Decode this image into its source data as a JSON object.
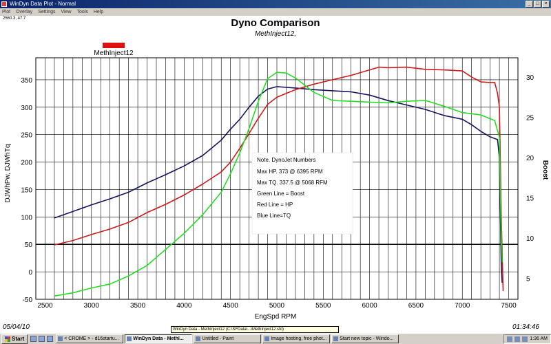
{
  "window": {
    "title": "WinDyn Data Plot - Normal"
  },
  "menu": [
    "Plot",
    "Overlay",
    "Settings",
    "View",
    "Tools",
    "Help"
  ],
  "coord_readout": "2560.3, 47.7",
  "status": {
    "date": "05/04/10",
    "time": "01:34:46",
    "file_info": "WinDyn Data - MethInject12  (C:\\SFData\\...\\MethInject12.sfd)"
  },
  "taskbar": {
    "start": "Start",
    "buttons": [
      {
        "label": "< CROME > - d16startu...",
        "active": false
      },
      {
        "label": "WinDyn Data - MethI...",
        "active": true
      },
      {
        "label": "Untitled - Paint",
        "active": false
      },
      {
        "label": "Image hosting, free phot...",
        "active": false
      },
      {
        "label": "Start new topic - Windo...",
        "active": false
      }
    ],
    "clock": "1:36 AM"
  },
  "legend": {
    "label": "MethInject12",
    "color": "#dd1111"
  },
  "colors": {
    "hp": "#cc1a1a",
    "tq": "#14145e",
    "boost": "#22dd22"
  },
  "chart_data": {
    "type": "line",
    "title": "Dyno Comparison",
    "subtitle": "MethInject12,",
    "xlabel": "EngSpd  RPM",
    "ylabel": "DJWhPw, DJWhTq",
    "y2label": "Boost",
    "xlim": [
      2400,
      7600
    ],
    "ylim": [
      -50,
      390
    ],
    "y2lim": [
      2.4,
      32.4
    ],
    "x_ticks": [
      2500,
      3000,
      3500,
      4000,
      4500,
      5000,
      5500,
      6000,
      6500,
      7000,
      7500
    ],
    "y_ticks": [
      -50,
      0,
      50,
      100,
      150,
      200,
      250,
      300,
      350
    ],
    "y2_ticks": [
      5,
      10,
      15,
      20,
      25,
      30
    ],
    "grid": true,
    "reference_line_y": 50,
    "series": [
      {
        "key": "tq",
        "axis": "left",
        "values": [
          [
            2600,
            98
          ],
          [
            2800,
            110
          ],
          [
            3000,
            122
          ],
          [
            3200,
            133
          ],
          [
            3400,
            145
          ],
          [
            3600,
            162
          ],
          [
            3800,
            177
          ],
          [
            4000,
            193
          ],
          [
            4200,
            212
          ],
          [
            4400,
            240
          ],
          [
            4500,
            260
          ],
          [
            4600,
            278
          ],
          [
            4700,
            300
          ],
          [
            4800,
            320
          ],
          [
            4900,
            333
          ],
          [
            5000,
            337.5
          ],
          [
            5200,
            335
          ],
          [
            5400,
            332
          ],
          [
            5600,
            330
          ],
          [
            5800,
            328
          ],
          [
            6000,
            322
          ],
          [
            6200,
            312
          ],
          [
            6400,
            304
          ],
          [
            6600,
            296
          ],
          [
            6800,
            285
          ],
          [
            7000,
            278
          ],
          [
            7100,
            268
          ],
          [
            7200,
            256
          ],
          [
            7300,
            246
          ],
          [
            7380,
            241
          ],
          [
            7400,
            208
          ],
          [
            7420,
            10
          ],
          [
            7430,
            -20
          ]
        ]
      },
      {
        "key": "hp",
        "axis": "left",
        "values": [
          [
            2600,
            49
          ],
          [
            2800,
            57
          ],
          [
            3000,
            68
          ],
          [
            3200,
            78
          ],
          [
            3400,
            90
          ],
          [
            3600,
            108
          ],
          [
            3800,
            123
          ],
          [
            4000,
            140
          ],
          [
            4200,
            160
          ],
          [
            4400,
            182
          ],
          [
            4500,
            200
          ],
          [
            4600,
            225
          ],
          [
            4700,
            252
          ],
          [
            4800,
            280
          ],
          [
            4900,
            305
          ],
          [
            5000,
            318
          ],
          [
            5200,
            332
          ],
          [
            5400,
            342
          ],
          [
            5600,
            350
          ],
          [
            5800,
            358
          ],
          [
            6000,
            368
          ],
          [
            6100,
            373
          ],
          [
            6200,
            372
          ],
          [
            6400,
            373
          ],
          [
            6600,
            369
          ],
          [
            6800,
            368
          ],
          [
            7000,
            366
          ],
          [
            7100,
            355
          ],
          [
            7200,
            346
          ],
          [
            7300,
            345
          ],
          [
            7350,
            345
          ],
          [
            7380,
            325
          ],
          [
            7400,
            300
          ],
          [
            7420,
            100
          ],
          [
            7440,
            -35
          ]
        ]
      },
      {
        "key": "boost",
        "axis": "right",
        "values": [
          [
            2600,
            2.8
          ],
          [
            2800,
            3.2
          ],
          [
            3000,
            3.8
          ],
          [
            3200,
            4.3
          ],
          [
            3400,
            5.3
          ],
          [
            3600,
            6.6
          ],
          [
            3700,
            7.6
          ],
          [
            3800,
            8.6
          ],
          [
            3900,
            9.6
          ],
          [
            4000,
            10.6
          ],
          [
            4200,
            12.9
          ],
          [
            4400,
            15.7
          ],
          [
            4500,
            18.0
          ],
          [
            4600,
            20.6
          ],
          [
            4700,
            23.6
          ],
          [
            4800,
            27.0
          ],
          [
            4900,
            29.8
          ],
          [
            5000,
            30.6
          ],
          [
            5100,
            30.5
          ],
          [
            5200,
            29.9
          ],
          [
            5400,
            28.1
          ],
          [
            5600,
            27.1
          ],
          [
            5800,
            27.0
          ],
          [
            6000,
            26.9
          ],
          [
            6200,
            26.8
          ],
          [
            6400,
            27.0
          ],
          [
            6600,
            27.1
          ],
          [
            6800,
            26.4
          ],
          [
            7000,
            25.6
          ],
          [
            7200,
            25.3
          ],
          [
            7350,
            24.6
          ],
          [
            7400,
            22.5
          ],
          [
            7420,
            10.0
          ],
          [
            7430,
            7.0
          ]
        ]
      }
    ],
    "annotation": {
      "lines": [
        "Note. DynoJet Numbers",
        "Max HP. 373 @ 6395 RPM",
        "Max TQ.  337.5 @ 5068 RFM",
        "Green Line = Boost",
        "Red Line = HP",
        "Blue Line=TQ"
      ]
    }
  }
}
